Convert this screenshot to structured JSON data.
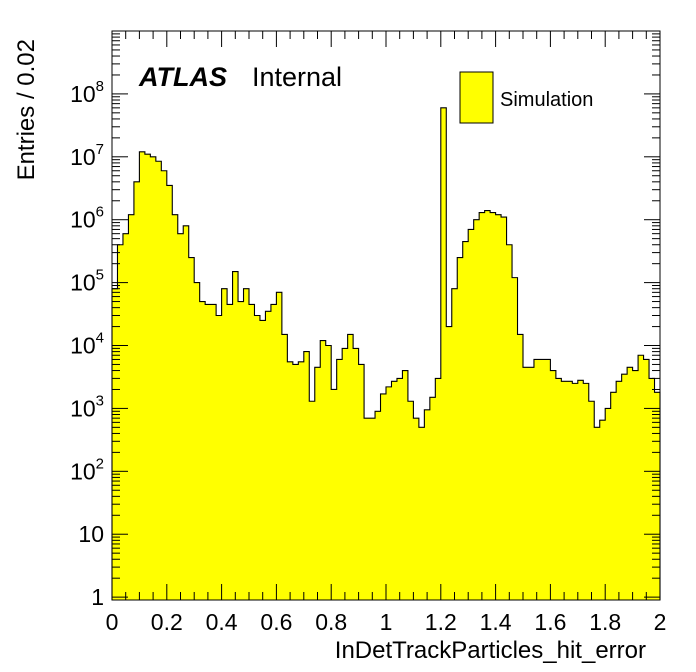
{
  "chart_data": {
    "type": "histogram",
    "xlabel": "InDetTrackParticles_hit_error",
    "ylabel": "Entries / 0.02",
    "label_bold": "ATLAS",
    "label_normal": "Internal",
    "legend": [
      {
        "name": "Simulation",
        "color": "#ffff00"
      }
    ],
    "legend_position": "top-right",
    "xlim": [
      0,
      2
    ],
    "ylim": [
      0.9,
      1000000000
    ],
    "yscale": "log",
    "bin_width": 0.02,
    "fill_color": "#ffff00",
    "line_color": "#000000",
    "x_ticks": [
      0,
      0.2,
      0.4,
      0.6,
      0.8,
      1,
      1.2,
      1.4,
      1.6,
      1.8,
      2
    ],
    "x_tick_labels": [
      "0",
      "0.2",
      "0.4",
      "0.6",
      "0.8",
      "1",
      "1.2",
      "1.4",
      "1.6",
      "1.8",
      "2"
    ],
    "y_ticks": [
      1,
      10,
      100,
      1000,
      10000,
      100000,
      1000000,
      10000000,
      100000000
    ],
    "y_tick_mantissa": [
      "1",
      "10",
      "10",
      "10",
      "10",
      "10",
      "10",
      "10",
      "10"
    ],
    "y_tick_exponent": [
      "",
      "",
      "2",
      "3",
      "4",
      "5",
      "6",
      "7",
      "8"
    ],
    "values": [
      80000,
      400000,
      600000,
      1200000,
      4000000,
      12000000,
      11000000,
      10000000,
      8500000,
      6000000,
      3500000,
      1200000,
      600000,
      800000,
      250000,
      100000,
      50000,
      45000,
      45000,
      30000,
      80000,
      45000,
      150000,
      50000,
      80000,
      45000,
      30000,
      25000,
      35000,
      45000,
      70000,
      15000,
      5500,
      5000,
      5500,
      8000,
      1300,
      4500,
      12000,
      10000,
      2000,
      6000,
      9000,
      15000,
      9000,
      5000,
      700,
      700,
      900,
      1700,
      2200,
      2700,
      3000,
      4000,
      1300,
      700,
      500,
      950,
      1500,
      3000,
      60000000,
      20000,
      80000,
      250000,
      450000,
      700000,
      1000000,
      1300000,
      1400000,
      1300000,
      1200000,
      1100000,
      400000,
      120000,
      15000,
      4500,
      4500,
      6000,
      6000,
      6000,
      4000,
      3000,
      2700,
      2700,
      2500,
      2800,
      2500,
      1300,
      500,
      650,
      1000,
      1800,
      2700,
      3500,
      4500,
      4000,
      7000,
      6000,
      3000,
      1800
    ]
  }
}
